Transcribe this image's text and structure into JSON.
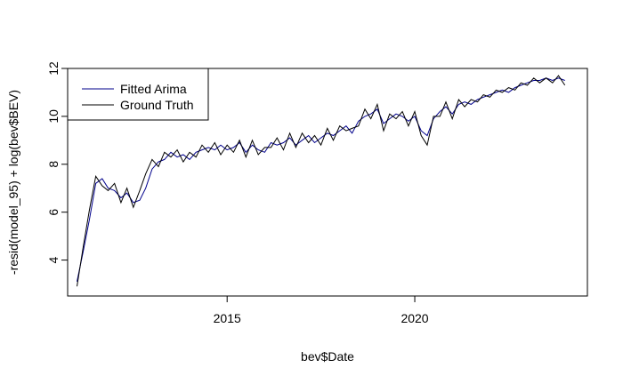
{
  "chart_data": {
    "type": "line",
    "xlabel": "bev$Date",
    "ylabel": "-resid(model_95) + log(bev$BEV)",
    "xlim": [
      2010.75,
      2024.6
    ],
    "ylim": [
      2.5,
      12.0
    ],
    "x_ticks": [
      2015,
      2020
    ],
    "x_tick_labels": [
      "2015",
      "2020"
    ],
    "y_ticks": [
      4,
      6,
      8,
      10,
      12
    ],
    "y_tick_labels": [
      "4",
      "6",
      "8",
      "10",
      "12"
    ],
    "grid": false,
    "legend_position": "top-left",
    "colors": {
      "fitted": "#00008b",
      "truth": "#000000"
    },
    "series": [
      {
        "name": "Fitted Arima",
        "color": "#00008b",
        "x": [
          2011.0,
          2011.17,
          2011.33,
          2011.5,
          2011.67,
          2011.83,
          2012.0,
          2012.17,
          2012.33,
          2012.5,
          2012.67,
          2012.83,
          2013.0,
          2013.17,
          2013.33,
          2013.5,
          2013.67,
          2013.83,
          2014.0,
          2014.17,
          2014.33,
          2014.5,
          2014.67,
          2014.83,
          2015.0,
          2015.17,
          2015.33,
          2015.5,
          2015.67,
          2015.83,
          2016.0,
          2016.17,
          2016.33,
          2016.5,
          2016.67,
          2016.83,
          2017.0,
          2017.17,
          2017.33,
          2017.5,
          2017.67,
          2017.83,
          2018.0,
          2018.17,
          2018.33,
          2018.5,
          2018.67,
          2018.83,
          2019.0,
          2019.17,
          2019.33,
          2019.5,
          2019.67,
          2019.83,
          2020.0,
          2020.17,
          2020.33,
          2020.5,
          2020.67,
          2020.83,
          2021.0,
          2021.17,
          2021.33,
          2021.5,
          2021.67,
          2021.83,
          2022.0,
          2022.17,
          2022.33,
          2022.5,
          2022.67,
          2022.83,
          2023.0,
          2023.17,
          2023.33,
          2023.5,
          2023.67,
          2023.83,
          2024.0
        ],
        "y": [
          3.1,
          4.4,
          5.7,
          7.2,
          7.4,
          7.0,
          6.9,
          6.6,
          6.8,
          6.4,
          6.5,
          7.0,
          7.8,
          8.1,
          8.2,
          8.5,
          8.3,
          8.4,
          8.2,
          8.5,
          8.6,
          8.7,
          8.6,
          8.8,
          8.6,
          8.7,
          8.9,
          8.5,
          8.8,
          8.6,
          8.5,
          8.9,
          8.8,
          8.9,
          9.1,
          8.8,
          9.0,
          9.2,
          8.9,
          9.1,
          9.3,
          9.2,
          9.4,
          9.6,
          9.3,
          9.8,
          10.0,
          10.1,
          10.3,
          9.7,
          9.9,
          10.1,
          10.0,
          9.8,
          10.0,
          9.4,
          9.2,
          9.9,
          10.2,
          10.4,
          10.1,
          10.5,
          10.6,
          10.5,
          10.7,
          10.8,
          10.9,
          11.0,
          11.1,
          11.0,
          11.2,
          11.3,
          11.4,
          11.5,
          11.5,
          11.6,
          11.5,
          11.6,
          11.5
        ]
      },
      {
        "name": "Ground Truth",
        "color": "#000000",
        "x": [
          2011.0,
          2011.17,
          2011.33,
          2011.5,
          2011.67,
          2011.83,
          2012.0,
          2012.17,
          2012.33,
          2012.5,
          2012.67,
          2012.83,
          2013.0,
          2013.17,
          2013.33,
          2013.5,
          2013.67,
          2013.83,
          2014.0,
          2014.17,
          2014.33,
          2014.5,
          2014.67,
          2014.83,
          2015.0,
          2015.17,
          2015.33,
          2015.5,
          2015.67,
          2015.83,
          2016.0,
          2016.17,
          2016.33,
          2016.5,
          2016.67,
          2016.83,
          2017.0,
          2017.17,
          2017.33,
          2017.5,
          2017.67,
          2017.83,
          2018.0,
          2018.17,
          2018.33,
          2018.5,
          2018.67,
          2018.83,
          2019.0,
          2019.17,
          2019.33,
          2019.5,
          2019.67,
          2019.83,
          2020.0,
          2020.17,
          2020.33,
          2020.5,
          2020.67,
          2020.83,
          2021.0,
          2021.17,
          2021.33,
          2021.5,
          2021.67,
          2021.83,
          2022.0,
          2022.17,
          2022.33,
          2022.5,
          2022.67,
          2022.83,
          2023.0,
          2023.17,
          2023.33,
          2023.5,
          2023.67,
          2023.83,
          2024.0
        ],
        "y": [
          2.9,
          4.6,
          6.1,
          7.5,
          7.1,
          6.9,
          7.2,
          6.4,
          7.0,
          6.2,
          6.9,
          7.6,
          8.2,
          7.9,
          8.5,
          8.3,
          8.6,
          8.1,
          8.5,
          8.3,
          8.8,
          8.5,
          8.9,
          8.4,
          8.8,
          8.5,
          9.0,
          8.3,
          9.0,
          8.4,
          8.7,
          8.7,
          9.1,
          8.6,
          9.3,
          8.7,
          9.3,
          8.9,
          9.2,
          8.8,
          9.5,
          9.0,
          9.6,
          9.4,
          9.5,
          9.6,
          10.3,
          9.9,
          10.5,
          9.4,
          10.1,
          9.9,
          10.2,
          9.6,
          10.2,
          9.2,
          8.8,
          10.0,
          10.0,
          10.6,
          9.9,
          10.7,
          10.4,
          10.7,
          10.6,
          10.9,
          10.8,
          11.1,
          11.0,
          11.2,
          11.1,
          11.4,
          11.3,
          11.6,
          11.4,
          11.6,
          11.4,
          11.7,
          11.3
        ]
      }
    ]
  }
}
